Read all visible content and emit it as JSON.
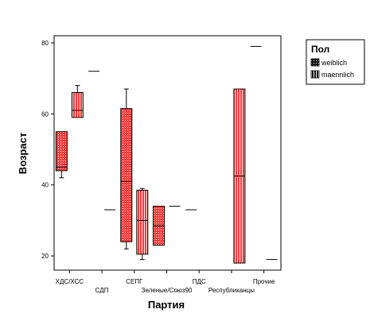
{
  "chart_data": {
    "type": "boxplot",
    "xlabel": "Партия",
    "ylabel": "Возраст",
    "ylim": [
      16,
      82
    ],
    "yticks": [
      20,
      40,
      60,
      80
    ],
    "categories": [
      "ХДС/ХСС",
      "СДП",
      "СЕПГ",
      "Зеленые/Союз90",
      "ПДС",
      "Республиканцы",
      "Прочие"
    ],
    "legend": {
      "title": "Пол",
      "placement": "right",
      "entries": [
        {
          "name": "weiblich",
          "pattern": "dots"
        },
        {
          "name": "maennlich",
          "pattern": "stripes"
        }
      ]
    },
    "colors": {
      "box_fill": "#ff3b3b",
      "stroke": "#000000"
    },
    "series": [
      {
        "name": "weiblich",
        "boxes": [
          {
            "category": "ХДС/ХСС",
            "min": 42,
            "q1": 44,
            "median": 45,
            "q3": 55,
            "max": 55
          },
          {
            "category": "СДП",
            "median": 72
          },
          {
            "category": "СЕПГ",
            "min": 22,
            "q1": 24,
            "median": 41,
            "q3": 61.5,
            "max": 67
          },
          {
            "category": "Зеленые/Союз90",
            "min": 23,
            "q1": 23,
            "median": 28.5,
            "q3": 34,
            "max": 34
          },
          {
            "category": "ПДС",
            "median": 33
          },
          {
            "category": "Прочие",
            "median": 79
          }
        ]
      },
      {
        "name": "maennlich",
        "boxes": [
          {
            "category": "ХДС/ХСС",
            "min": 59,
            "q1": 59,
            "median": 61,
            "q3": 66,
            "max": 68
          },
          {
            "category": "СДП",
            "median": 33
          },
          {
            "category": "СЕПГ",
            "min": 19,
            "q1": 20.5,
            "median": 30,
            "q3": 38.5,
            "max": 39
          },
          {
            "category": "Зеленые/Союз90",
            "median": 34
          },
          {
            "category": "Республиканцы",
            "min": 18,
            "q1": 18,
            "median": 42.5,
            "q3": 67,
            "max": 67
          },
          {
            "category": "Прочие",
            "median": 19
          }
        ]
      }
    ]
  }
}
